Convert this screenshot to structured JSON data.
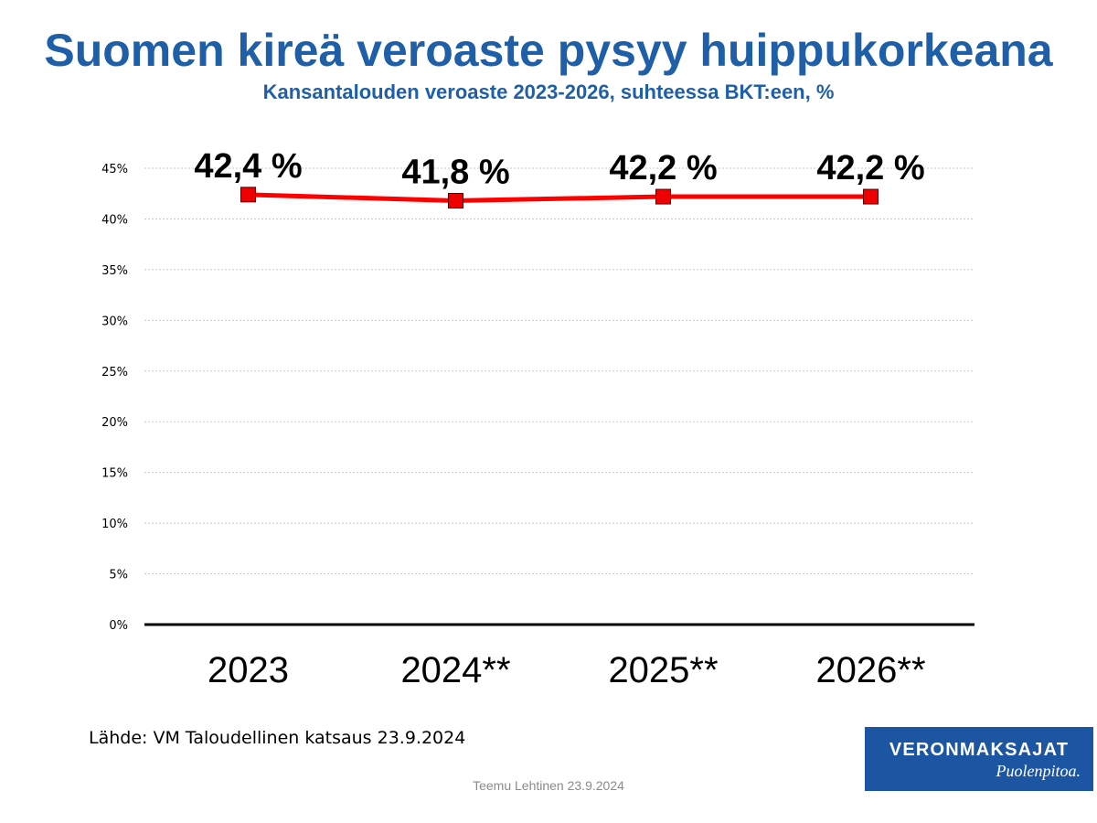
{
  "chart_data": {
    "type": "line",
    "title": "Suomen kireä veroaste pysyy huippukorkeana",
    "subtitle": "Kansantalouden veroaste 2023-2026, suhteessa BKT:een, %",
    "categories": [
      "2023",
      "2024**",
      "2025**",
      "2026**"
    ],
    "values": [
      42.4,
      41.8,
      42.2,
      42.2
    ],
    "data_labels": [
      "42,4 %",
      "41,8 %",
      "42,2 %",
      "42,2 %"
    ],
    "ylim": [
      0,
      45
    ],
    "yticks": [
      0,
      5,
      10,
      15,
      20,
      25,
      30,
      35,
      40,
      45
    ],
    "ytick_labels": [
      "0%",
      "5%",
      "10%",
      "15%",
      "20%",
      "25%",
      "30%",
      "35%",
      "40%",
      "45%"
    ],
    "grid": true,
    "legend": "none",
    "line_color": "#ff0000",
    "marker_color": "#ee0000"
  },
  "source": "Lähde: VM Taloudellinen katsaus 23.9.2024",
  "footer": "Teemu Lehtinen  23.9.2024",
  "logo": {
    "name": "VERONMAKSAJAT",
    "slogan": "Puolenpitoa.",
    "color": "#1c56a3"
  },
  "colors": {
    "title": "#1f5fa8"
  }
}
